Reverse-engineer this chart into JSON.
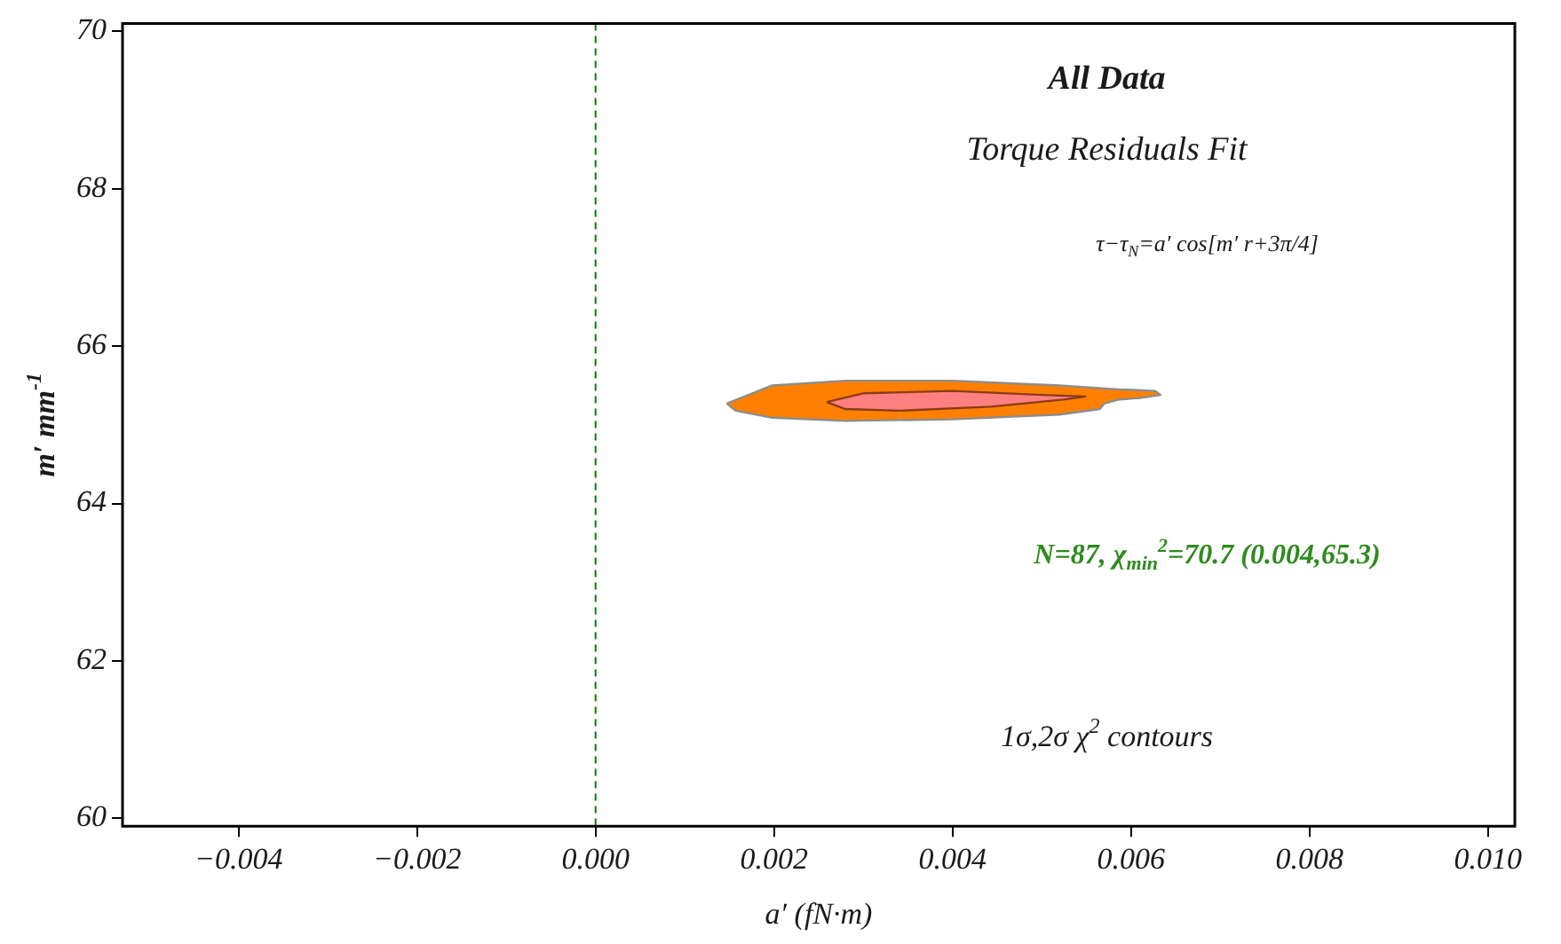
{
  "chart_data": {
    "type": "area",
    "title": "All Data",
    "subtitle": "Torque Residuals Fit",
    "xlabel": "a′ (fN·m)",
    "ylabel": "m′ mm$^{-1}$",
    "annotations": [
      "τ−τ$_{N}$=a′ cos[m′ r+3π/4]",
      "N=87, χ$_{min}$$^{2}$=70.7 (0.004,65.3)",
      "1σ,2σ χ$^{2}$ contours"
    ],
    "series": [
      {
        "color": "#ff8000",
        "x": [
          0.00147,
          0.00198,
          0.0028,
          0.004,
          0.0052,
          0.00586,
          0.00627,
          0.00633,
          0.0061,
          0.00586,
          0.0057,
          0.00565,
          0.0052,
          0.004,
          0.0028,
          0.00198,
          0.00157,
          0.00147
        ],
        "values": [
          65.27,
          65.5,
          65.56,
          65.56,
          65.5,
          65.45,
          65.43,
          65.38,
          65.34,
          65.32,
          65.27,
          65.2,
          65.13,
          65.07,
          65.05,
          65.09,
          65.18,
          65.27
        ]
      },
      {
        "color": "#ff8080",
        "x": [
          0.00259,
          0.003,
          0.004,
          0.005,
          0.00549,
          0.00524,
          0.00443,
          0.0034,
          0.0028,
          0.00259
        ],
        "values": [
          65.29,
          65.4,
          65.43,
          65.38,
          65.36,
          65.32,
          65.23,
          65.18,
          65.2,
          65.29
        ]
      }
    ],
    "xlim": [
      -0.0053,
      0.0103
    ],
    "ylim": [
      59.9,
      70.1
    ],
    "xticks": [
      {
        "value": -0.004,
        "label": "−0.004"
      },
      {
        "value": -0.002,
        "label": "−0.002"
      },
      {
        "value": 0,
        "label": "0.000"
      },
      {
        "value": 0.002,
        "label": "0.002"
      },
      {
        "value": 0.004,
        "label": "0.004"
      },
      {
        "value": 0.006,
        "label": "0.006"
      },
      {
        "value": 0.008,
        "label": "0.008"
      },
      {
        "value": 0.01,
        "label": "0.010"
      }
    ],
    "yticks": [
      60,
      62,
      64,
      66,
      68,
      70
    ],
    "ref_lines": [
      {
        "axis": "x",
        "value": 0,
        "color": "#008000",
        "line_style": "dashed"
      }
    ],
    "grid": false,
    "legend": false
  }
}
